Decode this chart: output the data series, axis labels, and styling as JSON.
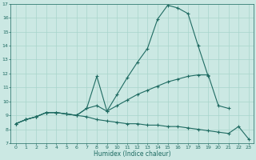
{
  "xlabel": "Humidex (Indice chaleur)",
  "xlim": [
    -0.5,
    23.5
  ],
  "ylim": [
    7,
    17
  ],
  "xticks": [
    0,
    1,
    2,
    3,
    4,
    5,
    6,
    7,
    8,
    9,
    10,
    11,
    12,
    13,
    14,
    15,
    16,
    17,
    18,
    19,
    20,
    21,
    22,
    23
  ],
  "yticks": [
    7,
    8,
    9,
    10,
    11,
    12,
    13,
    14,
    15,
    16,
    17
  ],
  "bg_color": "#cbe8e3",
  "line_color": "#1f6b62",
  "grid_color": "#a8d4cc",
  "curve1_x": [
    0,
    1,
    2,
    3,
    4,
    5,
    6,
    7,
    8,
    9,
    10,
    11,
    12,
    13,
    14,
    15,
    16,
    17,
    18,
    19,
    20,
    21,
    22,
    23
  ],
  "curve1_y": [
    8.4,
    8.7,
    8.9,
    9.2,
    9.2,
    9.1,
    9.0,
    9.5,
    11.8,
    9.3,
    10.5,
    11.7,
    12.8,
    13.8,
    15.9,
    16.9,
    16.7,
    16.3,
    14.0,
    11.8,
    null,
    null,
    null,
    null
  ],
  "curve2_x": [
    0,
    1,
    2,
    3,
    4,
    5,
    6,
    7,
    8,
    9,
    10,
    11,
    12,
    13,
    14,
    15,
    16,
    17,
    18,
    19,
    20,
    21,
    22,
    23
  ],
  "curve2_y": [
    8.4,
    8.7,
    8.9,
    9.2,
    9.2,
    9.1,
    9.0,
    9.5,
    9.7,
    9.3,
    9.7,
    10.1,
    10.5,
    10.8,
    11.1,
    11.4,
    11.6,
    11.8,
    11.9,
    11.9,
    9.7,
    9.5,
    null,
    null
  ],
  "curve3_x": [
    0,
    1,
    2,
    3,
    4,
    5,
    6,
    7,
    8,
    9,
    10,
    11,
    12,
    13,
    14,
    15,
    16,
    17,
    18,
    19,
    20,
    21,
    22,
    23
  ],
  "curve3_y": [
    8.4,
    8.7,
    8.9,
    9.2,
    9.2,
    9.1,
    9.0,
    8.9,
    8.7,
    8.6,
    8.5,
    8.4,
    8.4,
    8.3,
    8.3,
    8.2,
    8.2,
    8.1,
    8.0,
    7.9,
    7.8,
    7.7,
    8.2,
    7.3
  ]
}
